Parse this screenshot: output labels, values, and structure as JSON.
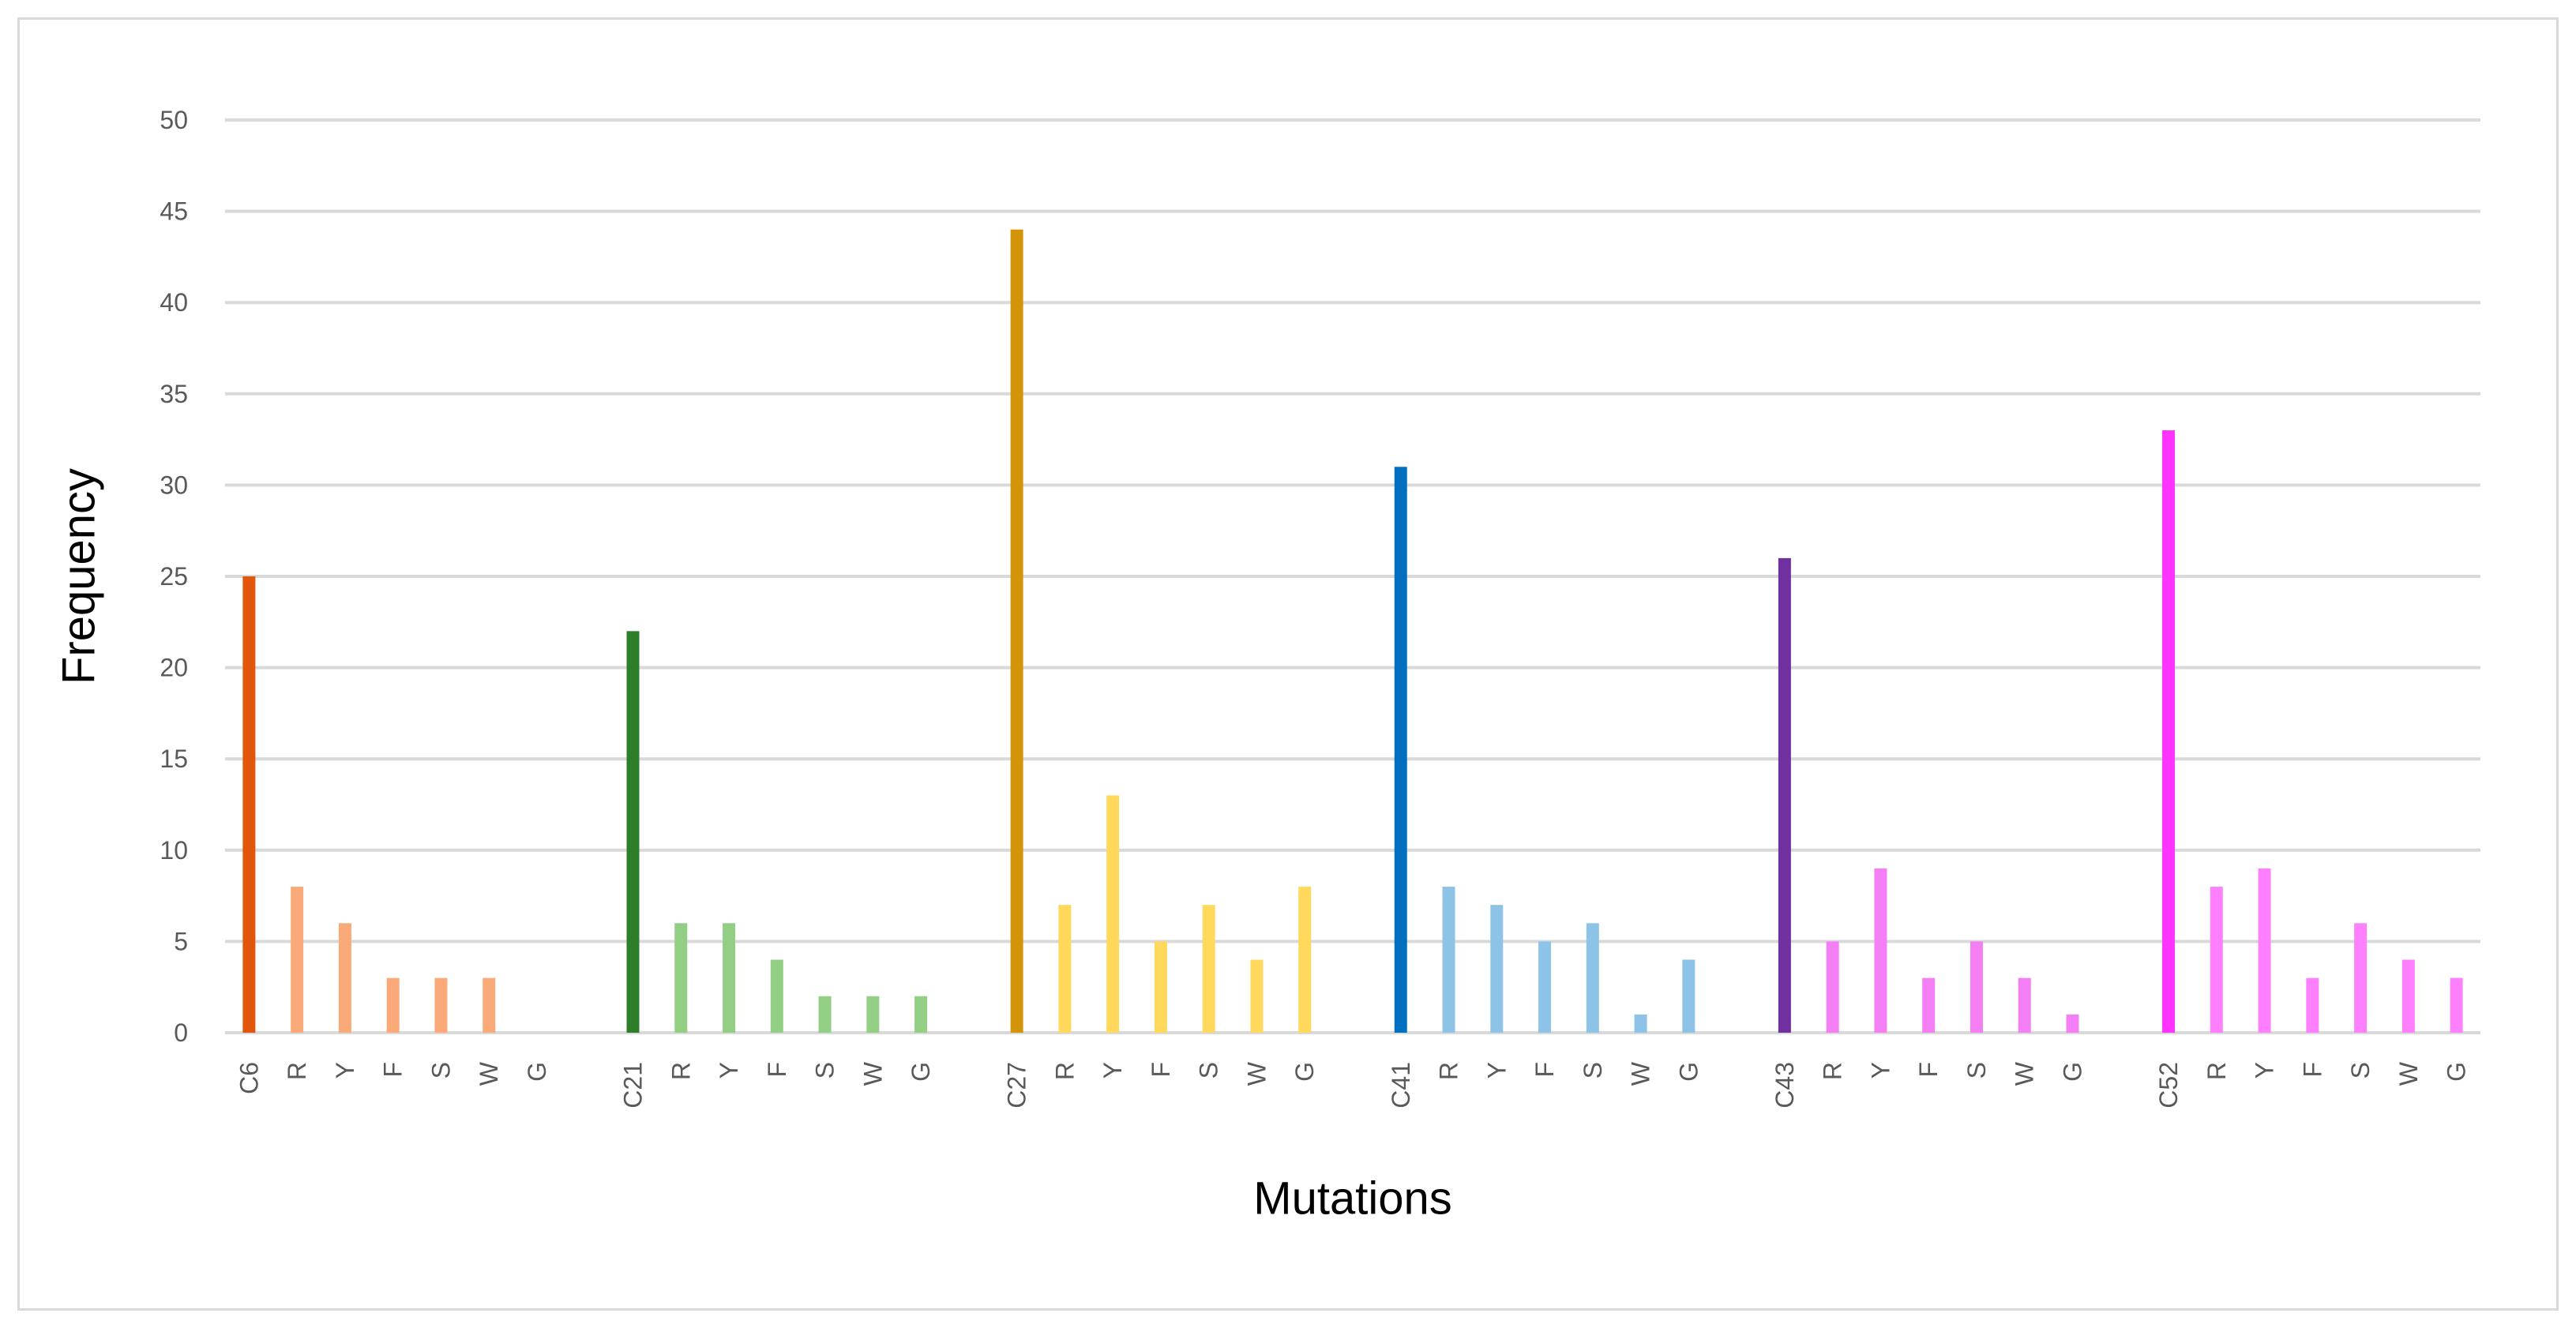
{
  "chart_data": {
    "type": "bar",
    "xlabel": "Mutations",
    "ylabel": "Frequency",
    "ylim": [
      0,
      50
    ],
    "yticks": [
      0,
      5,
      10,
      15,
      20,
      25,
      30,
      35,
      40,
      45,
      50
    ],
    "grid": true,
    "legend": "none",
    "groups": [
      {
        "categories": [
          "C6",
          "R",
          "Y",
          "F",
          "S",
          "W",
          "G"
        ],
        "values": [
          25,
          8,
          6,
          3,
          3,
          3,
          0
        ],
        "colors": [
          "#e2560c",
          "#f9aa78"
        ]
      },
      {
        "categories": [
          "C21",
          "R",
          "Y",
          "F",
          "S",
          "W",
          "G"
        ],
        "values": [
          22,
          6,
          6,
          4,
          2,
          2,
          2
        ],
        "colors": [
          "#2e7d2a",
          "#92cf84"
        ]
      },
      {
        "categories": [
          "C27",
          "R",
          "Y",
          "F",
          "S",
          "W",
          "G"
        ],
        "values": [
          44,
          7,
          13,
          5,
          7,
          4,
          8
        ],
        "colors": [
          "#d4940a",
          "#ffd85c"
        ]
      },
      {
        "categories": [
          "C41",
          "R",
          "Y",
          "F",
          "S",
          "W",
          "G"
        ],
        "values": [
          31,
          8,
          7,
          5,
          6,
          1,
          4
        ],
        "colors": [
          "#0070bf",
          "#8ec3e8"
        ]
      },
      {
        "categories": [
          "C43",
          "R",
          "Y",
          "F",
          "S",
          "W",
          "G"
        ],
        "values": [
          26,
          5,
          9,
          3,
          5,
          3,
          1
        ],
        "colors": [
          "#7030a0",
          "#f47ff4"
        ]
      },
      {
        "categories": [
          "C52",
          "R",
          "Y",
          "F",
          "S",
          "W",
          "G"
        ],
        "values": [
          33,
          8,
          9,
          3,
          6,
          4,
          3
        ],
        "colors": [
          "#ff33ff",
          "#ff80ff"
        ]
      }
    ]
  }
}
